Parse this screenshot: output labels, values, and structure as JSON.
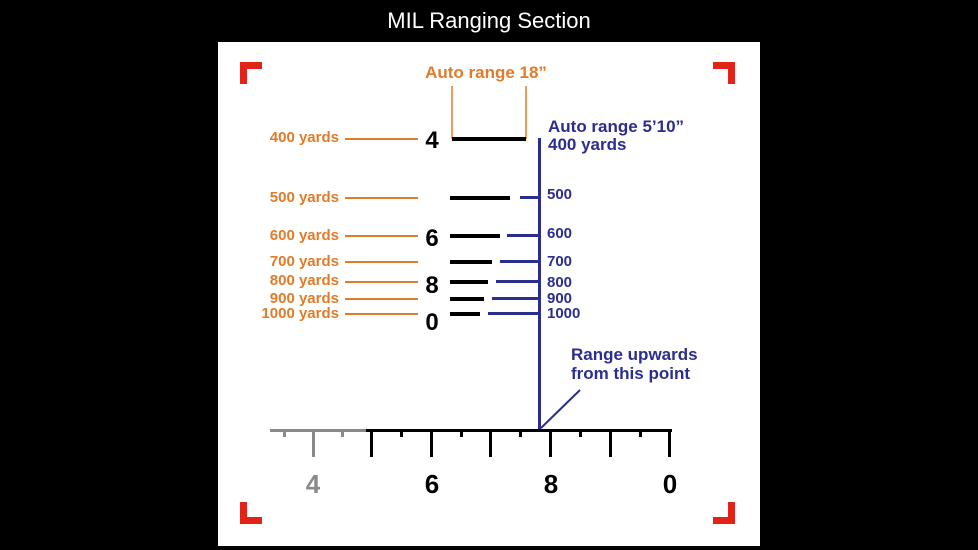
{
  "title": "MIL Ranging Section",
  "labels": {
    "auto_range_18": "Auto range 18”",
    "auto_range_5_10": "Auto range 5’10”",
    "auto_range_400": "400 yards",
    "range_upwards": [
      "Range upwards",
      "from this point"
    ]
  },
  "orange_labels": [
    "400 yards",
    "500 yards",
    "600 yards",
    "700 yards",
    "800 yards",
    "900 yards",
    "1000 yards"
  ],
  "blue_labels": [
    "500",
    "600",
    "700",
    "800",
    "900",
    "1000"
  ],
  "reticle_numbers": [
    "4",
    "6",
    "8",
    "0"
  ],
  "scale_numbers": [
    "4",
    "6",
    "8",
    "0"
  ],
  "colors": {
    "orange": "#e07b2a",
    "blue": "#2b2d8f",
    "corner_red": "#e2231a",
    "gray": "#8a8a8a"
  }
}
